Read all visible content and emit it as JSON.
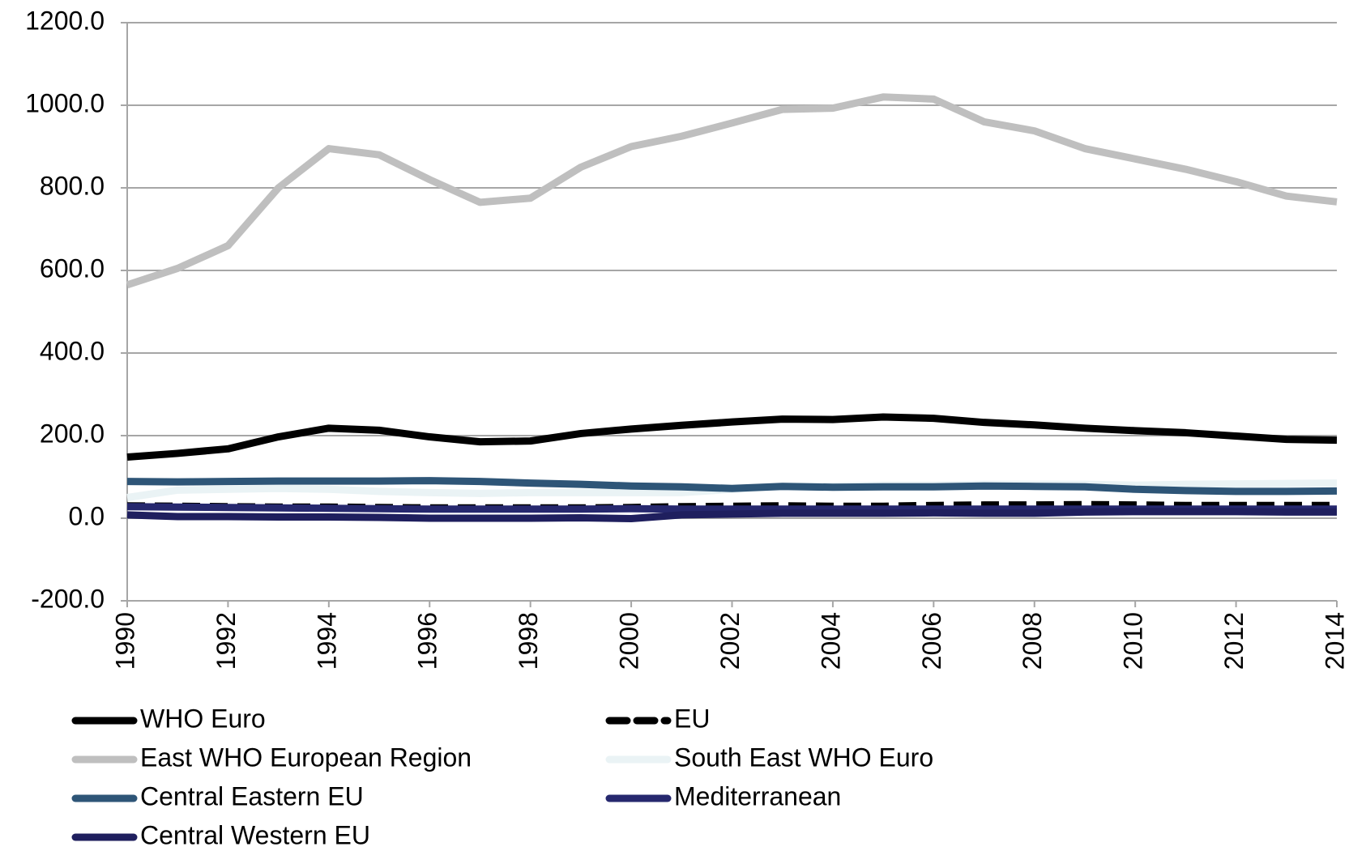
{
  "chart_data": {
    "type": "line",
    "x": [
      1990,
      1991,
      1992,
      1993,
      1994,
      1995,
      1996,
      1997,
      1998,
      1999,
      2000,
      2001,
      2002,
      2003,
      2004,
      2005,
      2006,
      2007,
      2008,
      2009,
      2010,
      2011,
      2012,
      2013,
      2014
    ],
    "xlim": [
      1990,
      2014
    ],
    "xticks": [
      1990,
      1992,
      1994,
      1996,
      1998,
      2000,
      2002,
      2004,
      2006,
      2008,
      2010,
      2012,
      2014
    ],
    "ylim": [
      -200,
      1200
    ],
    "yticks": [
      {
        "value": -200,
        "label": "-200.0"
      },
      {
        "value": 0,
        "label": "0.0"
      },
      {
        "value": 200,
        "label": "200.0"
      },
      {
        "value": 400,
        "label": "400.0"
      },
      {
        "value": 600,
        "label": "600.0"
      },
      {
        "value": 800,
        "label": "800.0"
      },
      {
        "value": 1000,
        "label": "1000.0"
      },
      {
        "value": 1200,
        "label": "1200.0"
      }
    ],
    "grid": true,
    "legend": "bottom",
    "series": [
      {
        "name": "WHO Euro",
        "color": "#000000",
        "values": [
          148,
          157,
          168,
          197,
          218,
          213,
          197,
          185,
          187,
          205,
          216,
          225,
          233,
          240,
          239,
          245,
          242,
          232,
          226,
          218,
          212,
          207,
          199,
          191,
          189
        ]
      },
      {
        "name": "EU",
        "color": "#000000",
        "dash": true,
        "values": [
          30,
          29,
          28,
          27,
          27,
          26,
          25,
          25,
          25,
          25,
          26,
          28,
          29,
          30,
          29,
          29,
          31,
          32,
          32,
          33,
          32,
          31,
          31,
          31,
          31
        ]
      },
      {
        "name": "East WHO European Region",
        "color": "#bfbfbf",
        "values": [
          565,
          605,
          660,
          800,
          895,
          880,
          820,
          765,
          775,
          850,
          900,
          925,
          957,
          990,
          993,
          1020,
          1015,
          960,
          938,
          895,
          870,
          845,
          815,
          780,
          766
        ]
      },
      {
        "name": "South East WHO Euro",
        "color": "#eaf3f5",
        "values": [
          50,
          68,
          70,
          72,
          70,
          65,
          62,
          60,
          62,
          62,
          62,
          62,
          70,
          78,
          78,
          80,
          80,
          82,
          82,
          82,
          80,
          82,
          83,
          84,
          85
        ]
      },
      {
        "name": "Central Eastern EU",
        "color": "#2e5577",
        "values": [
          89,
          88,
          89,
          90,
          90,
          90,
          91,
          89,
          85,
          82,
          78,
          76,
          72,
          77,
          75,
          76,
          76,
          78,
          77,
          76,
          70,
          67,
          65,
          65,
          66
        ]
      },
      {
        "name": "Mediterranean",
        "color": "#26286e",
        "values": [
          28,
          27,
          26,
          25,
          24,
          23,
          22,
          22,
          22,
          22,
          23,
          22,
          22,
          22,
          22,
          22,
          22,
          22,
          22,
          22,
          22,
          22,
          22,
          22,
          22
        ]
      },
      {
        "name": "Central Western EU",
        "color": "#1f1f5e",
        "values": [
          8,
          4,
          4,
          3,
          3,
          2,
          0,
          0,
          0,
          1,
          -1,
          8,
          10,
          12,
          12,
          12,
          13,
          12,
          12,
          15,
          16,
          16,
          16,
          15,
          15
        ]
      }
    ]
  }
}
